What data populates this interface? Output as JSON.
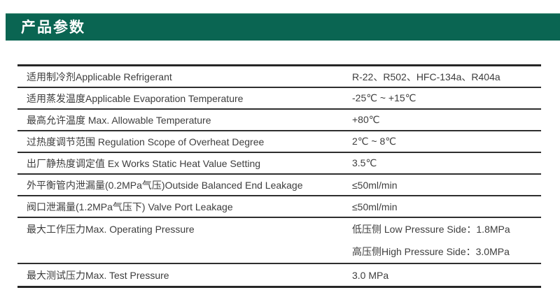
{
  "header": {
    "title": "产品参数"
  },
  "colors": {
    "header_green": "#0a6552",
    "rule_dark": "#262626",
    "text_gray": "#3d3d3d"
  },
  "table": {
    "rows": [
      {
        "label": "适用制冷剂Applicable Refrigerant",
        "value": "R-22、R502、HFC-134a、R404a"
      },
      {
        "label": "适用蒸发温度Applicable Evaporation Temperature",
        "value": "-25℃ ~ +15℃"
      },
      {
        "label": "最高允许温度 Max. Allowable Temperature",
        "value": "+80℃"
      },
      {
        "label": "过热度调节范围 Regulation Scope of Overheat Degree",
        "value": "2℃ ~ 8℃"
      },
      {
        "label": "出厂静热度调定值 Ex Works Static Heat Value Setting",
        "value": "3.5℃"
      },
      {
        "label": "外平衡管内泄漏量(0.2MPa气压)Outside Balanced End Leakage",
        "value": "≤50ml/min"
      },
      {
        "label": "阀口泄漏量(1.2MPa气压下) Valve Port Leakage",
        "value": "≤50ml/min"
      },
      {
        "label": "最大工作压力Max. Operating Pressure",
        "value_lines": [
          "低压侧 Low Pressure Side：1.8MPa",
          "高压侧High Pressure Side：3.0MPa"
        ]
      },
      {
        "label": "最大测试压力Max. Test Pressure",
        "value": "3.0 MPa"
      }
    ]
  }
}
